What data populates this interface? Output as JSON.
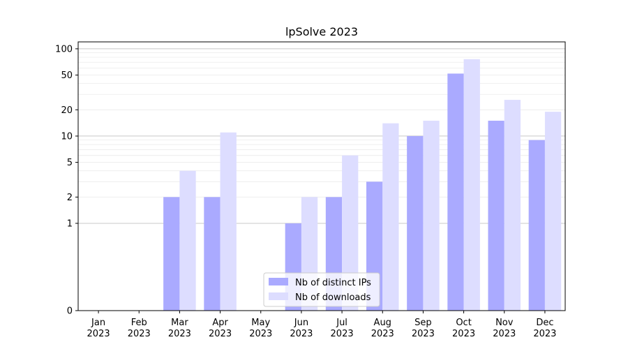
{
  "chart_data": {
    "type": "bar",
    "title": "lpSolve 2023",
    "xlabel": "",
    "ylabel": "",
    "y_scale": "symlog",
    "ylim": [
      0,
      120
    ],
    "y_ticks": [
      0,
      1,
      2,
      5,
      10,
      20,
      50,
      100
    ],
    "grid": "y-major-and-minor",
    "legend_position": "bottom-center",
    "categories": [
      [
        "Jan",
        "2023"
      ],
      [
        "Feb",
        "2023"
      ],
      [
        "Mar",
        "2023"
      ],
      [
        "Apr",
        "2023"
      ],
      [
        "May",
        "2023"
      ],
      [
        "Jun",
        "2023"
      ],
      [
        "Jul",
        "2023"
      ],
      [
        "Aug",
        "2023"
      ],
      [
        "Sep",
        "2023"
      ],
      [
        "Oct",
        "2023"
      ],
      [
        "Nov",
        "2023"
      ],
      [
        "Dec",
        "2023"
      ]
    ],
    "series": [
      {
        "name": "Nb of distinct IPs",
        "color": "#aaaaff",
        "values": [
          0,
          0,
          2,
          2,
          0,
          1,
          2,
          3,
          10,
          52,
          15,
          9
        ]
      },
      {
        "name": "Nb of downloads",
        "color": "#ddddff",
        "values": [
          0,
          0,
          4,
          11,
          0,
          2,
          6,
          14,
          15,
          76,
          26,
          19
        ]
      }
    ]
  }
}
